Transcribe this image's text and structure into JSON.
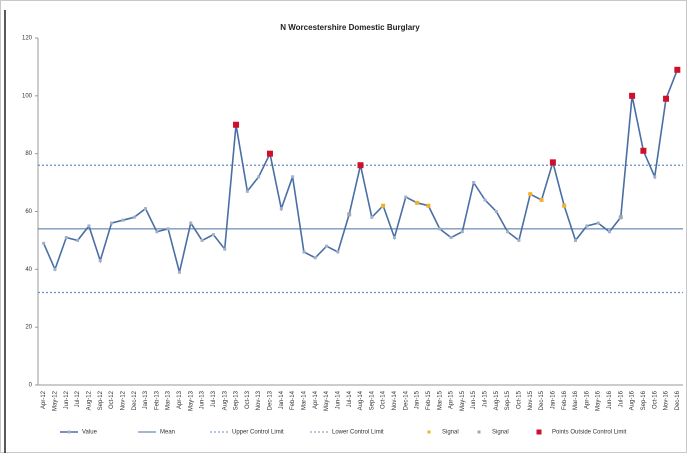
{
  "chart_data": {
    "type": "control",
    "title": "N Worcestershire Domestic Burglary",
    "categories": [
      "Apr-12",
      "May-12",
      "Jun-12",
      "Jul-12",
      "Aug-12",
      "Sep-12",
      "Oct-12",
      "Nov-12",
      "Dec-12",
      "Jan-13",
      "Feb-13",
      "Mar-13",
      "Apr-13",
      "May-13",
      "Jun-13",
      "Jul-13",
      "Aug-13",
      "Sep-13",
      "Oct-13",
      "Nov-13",
      "Dec-13",
      "Jan-14",
      "Feb-14",
      "Mar-14",
      "Apr-14",
      "May-14",
      "Jun-14",
      "Jul-14",
      "Aug-14",
      "Sep-14",
      "Oct-14",
      "Nov-14",
      "Dec-14",
      "Jan-15",
      "Feb-15",
      "Mar-15",
      "Apr-15",
      "May-15",
      "Jun-15",
      "Jul-15",
      "Aug-15",
      "Sep-15",
      "Oct-15",
      "Nov-15",
      "Dec-15",
      "Jan-16",
      "Feb-16",
      "Mar-16",
      "Apr-16",
      "May-16",
      "Jun-16",
      "Jul-16",
      "Aug-16",
      "Sep-16",
      "Oct-16",
      "Nov-16",
      "Dec-16"
    ],
    "series": [
      {
        "name": "Value",
        "color": "#4a6fa5",
        "values": [
          49,
          40,
          51,
          50,
          55,
          43,
          56,
          57,
          58,
          61,
          53,
          54,
          39,
          56,
          50,
          52,
          47,
          90,
          67,
          72,
          80,
          61,
          72,
          46,
          44,
          48,
          46,
          59,
          76,
          58,
          62,
          51,
          65,
          63,
          62,
          54,
          51,
          53,
          70,
          64,
          60,
          53,
          50,
          66,
          64,
          77,
          62,
          50,
          55,
          56,
          53,
          58,
          100,
          81,
          72,
          99,
          109
        ]
      },
      {
        "name": "Signal",
        "color": "#f0b030",
        "values": [
          null,
          null,
          null,
          null,
          null,
          null,
          null,
          null,
          null,
          null,
          null,
          null,
          null,
          null,
          null,
          null,
          null,
          null,
          null,
          null,
          null,
          null,
          null,
          null,
          null,
          null,
          null,
          null,
          null,
          null,
          62,
          null,
          null,
          63,
          62,
          null,
          null,
          null,
          null,
          null,
          null,
          null,
          null,
          66,
          64,
          null,
          62,
          null,
          null,
          null,
          null,
          null,
          null,
          null,
          null,
          null,
          null
        ]
      },
      {
        "name": "Signal",
        "color": "#a0a8b0",
        "values": [
          null,
          null,
          null,
          null,
          null,
          null,
          null,
          null,
          null,
          null,
          null,
          null,
          null,
          null,
          null,
          null,
          null,
          null,
          null,
          null,
          null,
          null,
          null,
          null,
          null,
          null,
          null,
          59,
          null,
          null,
          null,
          null,
          null,
          null,
          null,
          null,
          null,
          null,
          null,
          null,
          null,
          null,
          null,
          null,
          null,
          null,
          null,
          null,
          null,
          null,
          null,
          58,
          null,
          null,
          null,
          null,
          null
        ]
      },
      {
        "name": "Points Outside Control Limit",
        "color": "#d0102a",
        "values": [
          null,
          null,
          null,
          null,
          null,
          null,
          null,
          null,
          null,
          null,
          null,
          null,
          null,
          null,
          null,
          null,
          null,
          90,
          null,
          null,
          80,
          null,
          null,
          null,
          null,
          null,
          null,
          null,
          76,
          null,
          null,
          null,
          null,
          null,
          null,
          null,
          null,
          null,
          null,
          null,
          null,
          null,
          null,
          null,
          null,
          77,
          null,
          null,
          null,
          null,
          null,
          null,
          100,
          81,
          null,
          99,
          109
        ]
      }
    ],
    "reference_lines": [
      {
        "name": "Mean",
        "value": 54,
        "color": "#4a6fa5",
        "dashed": false
      },
      {
        "name": "Upper Control Limit",
        "value": 76,
        "color": "#6a8fc0",
        "dashed": true
      },
      {
        "name": "Lower Control Limit",
        "value": 32,
        "color": "#6a8fc0",
        "dashed": true
      }
    ],
    "ylim": [
      0,
      120
    ],
    "yticks": [
      0,
      20,
      40,
      60,
      80,
      100,
      120
    ]
  }
}
